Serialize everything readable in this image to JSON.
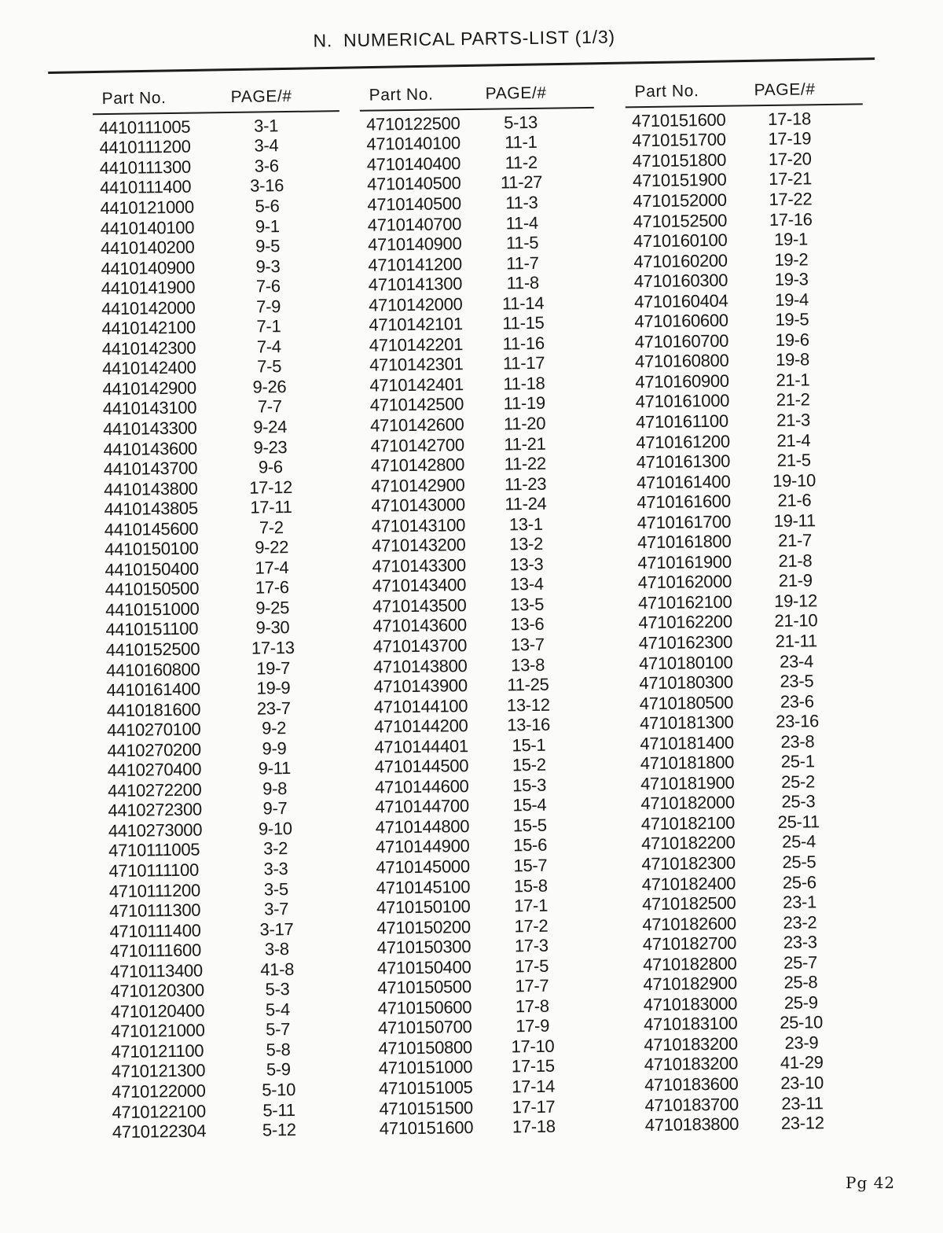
{
  "page": {
    "title_prefix": "N.",
    "title_text": "NUMERICAL PARTS-LIST (1/3)",
    "footer": "Pg 42"
  },
  "table": {
    "col_header_part": "Part No.",
    "col_header_page": "PAGE/#",
    "columns": [
      {
        "rows": [
          {
            "part": "4410111005",
            "page": "3-1"
          },
          {
            "part": "4410111200",
            "page": "3-4"
          },
          {
            "part": "4410111300",
            "page": "3-6"
          },
          {
            "part": "4410111400",
            "page": "3-16"
          },
          {
            "part": "4410121000",
            "page": "5-6"
          },
          {
            "part": "4410140100",
            "page": "9-1"
          },
          {
            "part": "4410140200",
            "page": "9-5"
          },
          {
            "part": "4410140900",
            "page": "9-3"
          },
          {
            "part": "4410141900",
            "page": "7-6"
          },
          {
            "part": "4410142000",
            "page": "7-9"
          },
          {
            "part": "4410142100",
            "page": "7-1"
          },
          {
            "part": "4410142300",
            "page": "7-4"
          },
          {
            "part": "4410142400",
            "page": "7-5"
          },
          {
            "part": "4410142900",
            "page": "9-26"
          },
          {
            "part": "4410143100",
            "page": "7-7"
          },
          {
            "part": "4410143300",
            "page": "9-24"
          },
          {
            "part": "4410143600",
            "page": "9-23"
          },
          {
            "part": "4410143700",
            "page": "9-6"
          },
          {
            "part": "4410143800",
            "page": "17-12"
          },
          {
            "part": "4410143805",
            "page": "17-11"
          },
          {
            "part": "4410145600",
            "page": "7-2"
          },
          {
            "part": "4410150100",
            "page": "9-22"
          },
          {
            "part": "4410150400",
            "page": "17-4"
          },
          {
            "part": "4410150500",
            "page": "17-6"
          },
          {
            "part": "4410151000",
            "page": "9-25"
          },
          {
            "part": "4410151100",
            "page": "9-30"
          },
          {
            "part": "4410152500",
            "page": "17-13"
          },
          {
            "part": "4410160800",
            "page": "19-7"
          },
          {
            "part": "4410161400",
            "page": "19-9"
          },
          {
            "part": "4410181600",
            "page": "23-7"
          },
          {
            "part": "4410270100",
            "page": "9-2"
          },
          {
            "part": "4410270200",
            "page": "9-9"
          },
          {
            "part": "4410270400",
            "page": "9-11"
          },
          {
            "part": "4410272200",
            "page": "9-8"
          },
          {
            "part": "4410272300",
            "page": "9-7"
          },
          {
            "part": "4410273000",
            "page": "9-10"
          },
          {
            "part": "4710111005",
            "page": "3-2"
          },
          {
            "part": "4710111100",
            "page": "3-3"
          },
          {
            "part": "4710111200",
            "page": "3-5"
          },
          {
            "part": "4710111300",
            "page": "3-7"
          },
          {
            "part": "4710111400",
            "page": "3-17"
          },
          {
            "part": "4710111600",
            "page": "3-8"
          },
          {
            "part": "4710113400",
            "page": "41-8"
          },
          {
            "part": "4710120300",
            "page": "5-3"
          },
          {
            "part": "4710120400",
            "page": "5-4"
          },
          {
            "part": "4710121000",
            "page": "5-7"
          },
          {
            "part": "4710121100",
            "page": "5-8"
          },
          {
            "part": "4710121300",
            "page": "5-9"
          },
          {
            "part": "4710122000",
            "page": "5-10"
          },
          {
            "part": "4710122100",
            "page": "5-11"
          },
          {
            "part": "4710122304",
            "page": "5-12"
          }
        ]
      },
      {
        "rows": [
          {
            "part": "4710122500",
            "page": "5-13"
          },
          {
            "part": "4710140100",
            "page": "11-1"
          },
          {
            "part": "4710140400",
            "page": "11-2"
          },
          {
            "part": "4710140500",
            "page": "11-27"
          },
          {
            "part": "4710140500",
            "page": "11-3"
          },
          {
            "part": "4710140700",
            "page": "11-4"
          },
          {
            "part": "4710140900",
            "page": "11-5"
          },
          {
            "part": "4710141200",
            "page": "11-7"
          },
          {
            "part": "4710141300",
            "page": "11-8"
          },
          {
            "part": "4710142000",
            "page": "11-14"
          },
          {
            "part": "4710142101",
            "page": "11-15"
          },
          {
            "part": "4710142201",
            "page": "11-16"
          },
          {
            "part": "4710142301",
            "page": "11-17"
          },
          {
            "part": "4710142401",
            "page": "11-18"
          },
          {
            "part": "4710142500",
            "page": "11-19"
          },
          {
            "part": "4710142600",
            "page": "11-20"
          },
          {
            "part": "4710142700",
            "page": "11-21"
          },
          {
            "part": "4710142800",
            "page": "11-22"
          },
          {
            "part": "4710142900",
            "page": "11-23"
          },
          {
            "part": "4710143000",
            "page": "11-24"
          },
          {
            "part": "4710143100",
            "page": "13-1"
          },
          {
            "part": "4710143200",
            "page": "13-2"
          },
          {
            "part": "4710143300",
            "page": "13-3"
          },
          {
            "part": "4710143400",
            "page": "13-4"
          },
          {
            "part": "4710143500",
            "page": "13-5"
          },
          {
            "part": "4710143600",
            "page": "13-6"
          },
          {
            "part": "4710143700",
            "page": "13-7"
          },
          {
            "part": "4710143800",
            "page": "13-8"
          },
          {
            "part": "4710143900",
            "page": "11-25"
          },
          {
            "part": "4710144100",
            "page": "13-12"
          },
          {
            "part": "4710144200",
            "page": "13-16"
          },
          {
            "part": "4710144401",
            "page": "15-1"
          },
          {
            "part": "4710144500",
            "page": "15-2"
          },
          {
            "part": "4710144600",
            "page": "15-3"
          },
          {
            "part": "4710144700",
            "page": "15-4"
          },
          {
            "part": "4710144800",
            "page": "15-5"
          },
          {
            "part": "4710144900",
            "page": "15-6"
          },
          {
            "part": "4710145000",
            "page": "15-7"
          },
          {
            "part": "4710145100",
            "page": "15-8"
          },
          {
            "part": "4710150100",
            "page": "17-1"
          },
          {
            "part": "4710150200",
            "page": "17-2"
          },
          {
            "part": "4710150300",
            "page": "17-3"
          },
          {
            "part": "4710150400",
            "page": "17-5"
          },
          {
            "part": "4710150500",
            "page": "17-7"
          },
          {
            "part": "4710150600",
            "page": "17-8"
          },
          {
            "part": "4710150700",
            "page": "17-9"
          },
          {
            "part": "4710150800",
            "page": "17-10"
          },
          {
            "part": "4710151000",
            "page": "17-15"
          },
          {
            "part": "4710151005",
            "page": "17-14"
          },
          {
            "part": "4710151500",
            "page": "17-17"
          },
          {
            "part": "4710151600",
            "page": "17-18"
          }
        ]
      },
      {
        "rows": [
          {
            "part": "4710151600",
            "page": "17-18"
          },
          {
            "part": "4710151700",
            "page": "17-19"
          },
          {
            "part": "4710151800",
            "page": "17-20"
          },
          {
            "part": "4710151900",
            "page": "17-21"
          },
          {
            "part": "4710152000",
            "page": "17-22"
          },
          {
            "part": "4710152500",
            "page": "17-16"
          },
          {
            "part": "4710160100",
            "page": "19-1"
          },
          {
            "part": "4710160200",
            "page": "19-2"
          },
          {
            "part": "4710160300",
            "page": "19-3"
          },
          {
            "part": "4710160404",
            "page": "19-4"
          },
          {
            "part": "4710160600",
            "page": "19-5"
          },
          {
            "part": "4710160700",
            "page": "19-6"
          },
          {
            "part": "4710160800",
            "page": "19-8"
          },
          {
            "part": "4710160900",
            "page": "21-1"
          },
          {
            "part": "4710161000",
            "page": "21-2"
          },
          {
            "part": "4710161100",
            "page": "21-3"
          },
          {
            "part": "4710161200",
            "page": "21-4"
          },
          {
            "part": "4710161300",
            "page": "21-5"
          },
          {
            "part": "4710161400",
            "page": "19-10"
          },
          {
            "part": "4710161600",
            "page": "21-6"
          },
          {
            "part": "4710161700",
            "page": "19-11"
          },
          {
            "part": "4710161800",
            "page": "21-7"
          },
          {
            "part": "4710161900",
            "page": "21-8"
          },
          {
            "part": "4710162000",
            "page": "21-9"
          },
          {
            "part": "4710162100",
            "page": "19-12"
          },
          {
            "part": "4710162200",
            "page": "21-10"
          },
          {
            "part": "4710162300",
            "page": "21-11"
          },
          {
            "part": "4710180100",
            "page": "23-4"
          },
          {
            "part": "4710180300",
            "page": "23-5"
          },
          {
            "part": "4710180500",
            "page": "23-6"
          },
          {
            "part": "4710181300",
            "page": "23-16"
          },
          {
            "part": "4710181400",
            "page": "23-8"
          },
          {
            "part": "4710181800",
            "page": "25-1"
          },
          {
            "part": "4710181900",
            "page": "25-2"
          },
          {
            "part": "4710182000",
            "page": "25-3"
          },
          {
            "part": "4710182100",
            "page": "25-11"
          },
          {
            "part": "4710182200",
            "page": "25-4"
          },
          {
            "part": "4710182300",
            "page": "25-5"
          },
          {
            "part": "4710182400",
            "page": "25-6"
          },
          {
            "part": "4710182500",
            "page": "23-1"
          },
          {
            "part": "4710182600",
            "page": "23-2"
          },
          {
            "part": "4710182700",
            "page": "23-3"
          },
          {
            "part": "4710182800",
            "page": "25-7"
          },
          {
            "part": "4710182900",
            "page": "25-8"
          },
          {
            "part": "4710183000",
            "page": "25-9"
          },
          {
            "part": "4710183100",
            "page": "25-10"
          },
          {
            "part": "4710183200",
            "page": "23-9"
          },
          {
            "part": "4710183200",
            "page": "41-29"
          },
          {
            "part": "4710183600",
            "page": "23-10"
          },
          {
            "part": "4710183700",
            "page": "23-11"
          },
          {
            "part": "4710183800",
            "page": "23-12"
          }
        ]
      }
    ]
  }
}
